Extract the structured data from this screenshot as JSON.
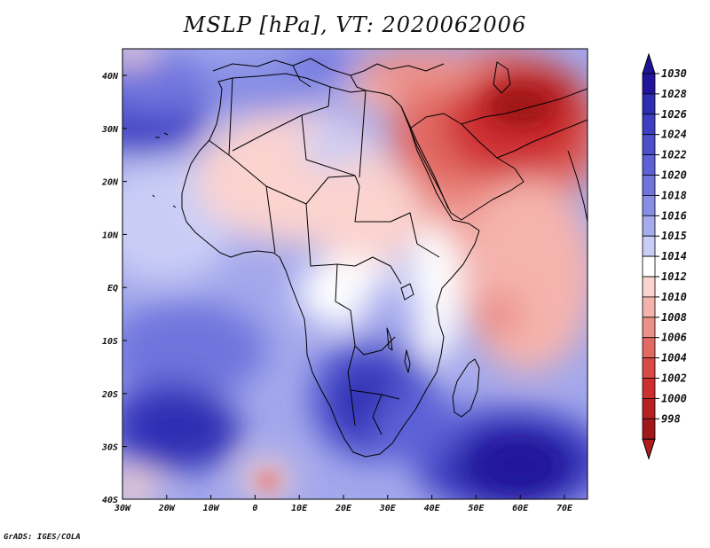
{
  "title": "MSLP [hPa], VT: 2020062006",
  "footer": "GrADS: IGES/COLA",
  "map": {
    "lat_labels": [
      "40N",
      "30N",
      "20N",
      "10N",
      "EQ",
      "10S",
      "20S",
      "30S",
      "40S"
    ],
    "lon_labels": [
      "30W",
      "20W",
      "10W",
      "0",
      "10E",
      "20E",
      "30E",
      "40E",
      "50E",
      "60E",
      "70E"
    ],
    "land_outline_color": "#000000"
  },
  "colorbar": {
    "labels": [
      "1030",
      "1028",
      "1026",
      "1024",
      "1022",
      "1020",
      "1018",
      "1016",
      "1015",
      "1014",
      "1012",
      "1010",
      "1008",
      "1006",
      "1004",
      "1002",
      "1000",
      "998"
    ],
    "colors": [
      "#23149c",
      "#2e2db3",
      "#3d3ec2",
      "#4c4fcc",
      "#5c61d6",
      "#6f75dd",
      "#878ee5",
      "#a6abee",
      "#c9cdf6",
      "#ffffff",
      "#fbd3cf",
      "#f5b3ad",
      "#ec9088",
      "#e26a63",
      "#d94a46",
      "#cd2e30",
      "#b81f23",
      "#a01818"
    ],
    "top_arrow_color": "#1e1396",
    "bottom_arrow_color": "#b01c1c"
  }
}
